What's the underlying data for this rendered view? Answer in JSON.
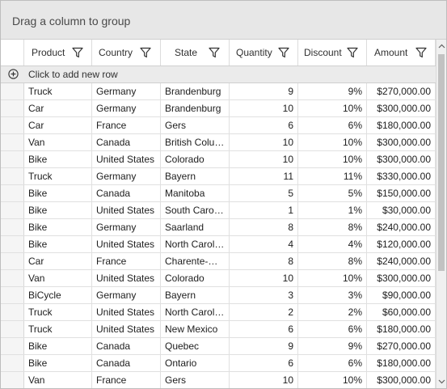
{
  "group_panel": {
    "label": "Drag a column to group"
  },
  "columns": [
    {
      "label": "Product",
      "icon": "filter-icon"
    },
    {
      "label": "Country",
      "icon": "filter-icon"
    },
    {
      "label": "State",
      "icon": "filter-icon"
    },
    {
      "label": "Quantity",
      "icon": "filter-icon"
    },
    {
      "label": "Discount",
      "icon": "filter-icon"
    },
    {
      "label": "Amount",
      "icon": "filter-icon"
    }
  ],
  "add_row": {
    "label": "Click to add new row",
    "icon": "add-circle-icon"
  },
  "rows": [
    [
      "Truck",
      "Germany",
      "Brandenburg",
      "9",
      "9%",
      "$270,000.00"
    ],
    [
      "Car",
      "Germany",
      "Brandenburg",
      "10",
      "10%",
      "$300,000.00"
    ],
    [
      "Car",
      "France",
      "Gers",
      "6",
      "6%",
      "$180,000.00"
    ],
    [
      "Van",
      "Canada",
      "British Colu…",
      "10",
      "10%",
      "$300,000.00"
    ],
    [
      "Bike",
      "United States",
      "Colorado",
      "10",
      "10%",
      "$300,000.00"
    ],
    [
      "Truck",
      "Germany",
      "Bayern",
      "11",
      "11%",
      "$330,000.00"
    ],
    [
      "Bike",
      "Canada",
      "Manitoba",
      "5",
      "5%",
      "$150,000.00"
    ],
    [
      "Bike",
      "United States",
      "South Carol…",
      "1",
      "1%",
      "$30,000.00"
    ],
    [
      "Bike",
      "Germany",
      "Saarland",
      "8",
      "8%",
      "$240,000.00"
    ],
    [
      "Bike",
      "United States",
      "North Carol…",
      "4",
      "4%",
      "$120,000.00"
    ],
    [
      "Car",
      "France",
      "Charente-M…",
      "8",
      "8%",
      "$240,000.00"
    ],
    [
      "Van",
      "United States",
      "Colorado",
      "10",
      "10%",
      "$300,000.00"
    ],
    [
      "BiCycle",
      "Germany",
      "Bayern",
      "3",
      "3%",
      "$90,000.00"
    ],
    [
      "Truck",
      "United States",
      "North Carol…",
      "2",
      "2%",
      "$60,000.00"
    ],
    [
      "Truck",
      "United States",
      "New Mexico",
      "6",
      "6%",
      "$180,000.00"
    ],
    [
      "Bike",
      "Canada",
      "Quebec",
      "9",
      "9%",
      "$270,000.00"
    ],
    [
      "Bike",
      "Canada",
      "Ontario",
      "6",
      "6%",
      "$180,000.00"
    ],
    [
      "Van",
      "France",
      "Gers",
      "10",
      "10%",
      "$300,000.00"
    ]
  ],
  "colors": {
    "group_panel_bg": "#e7e7e7",
    "add_row_bg": "#ebebeb",
    "scroll_thumb": "#c2c2c2"
  }
}
